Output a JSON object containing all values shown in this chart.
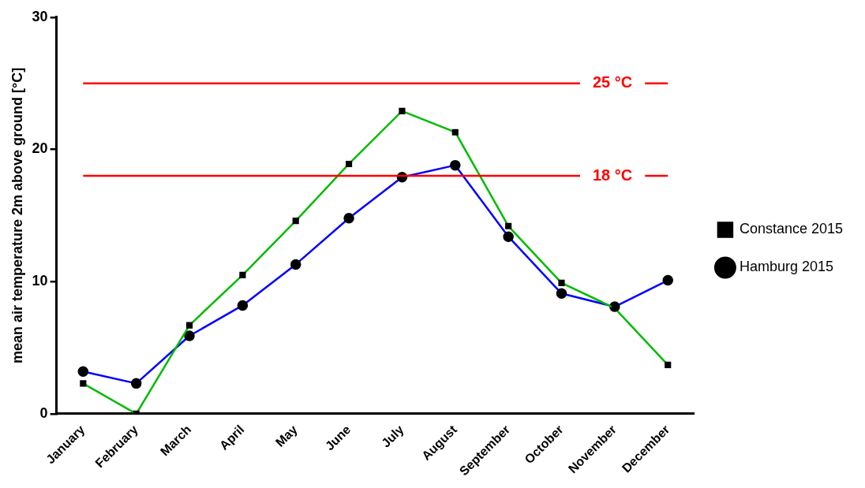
{
  "chart_data": {
    "type": "line",
    "ylabel": "mean air temperature 2m above ground [°C]",
    "categories": [
      "January",
      "February",
      "March",
      "April",
      "May",
      "June",
      "July",
      "August",
      "September",
      "October",
      "November",
      "December"
    ],
    "series": [
      {
        "name": "Hamburg 2015",
        "color": "#0000ff",
        "marker": "circle",
        "values": [
          3.2,
          2.3,
          5.9,
          8.2,
          11.3,
          14.8,
          17.9,
          18.8,
          13.4,
          9.1,
          8.1,
          10.1
        ]
      },
      {
        "name": "Constance 2015",
        "color": "#00bb00",
        "marker": "square",
        "values": [
          2.3,
          0,
          6.7,
          10.5,
          14.6,
          18.9,
          22.9,
          21.3,
          14.2,
          9.9,
          8.0,
          3.7
        ]
      }
    ],
    "ylim": [
      0,
      30
    ],
    "yticks": [
      0,
      10,
      20,
      30
    ],
    "grid": false,
    "legend": "right",
    "line_style": "solid",
    "ref_lines": [
      {
        "axis": "y",
        "value": 25,
        "label": "25 °C",
        "color": "#ff0000"
      },
      {
        "axis": "y",
        "value": 18,
        "label": "18 °C",
        "color": "#ff0000"
      }
    ]
  }
}
